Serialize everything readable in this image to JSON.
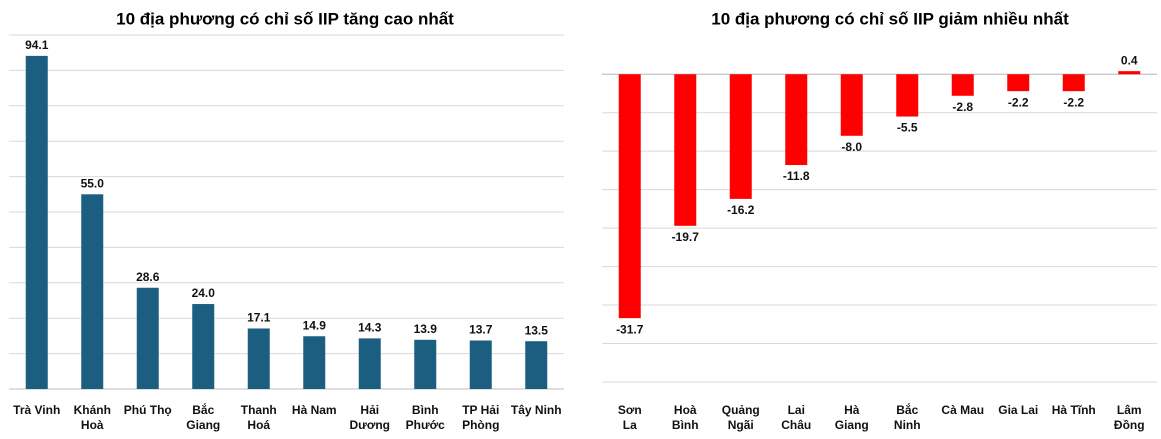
{
  "chart_data": [
    {
      "type": "bar",
      "title": "10 địa phương có chỉ số IIP tăng cao nhất",
      "categories": [
        "Trà Vinh",
        "Khánh\nHoà",
        "Phú Thọ",
        "Bắc\nGiang",
        "Thanh\nHoá",
        "Hà Nam",
        "Hải\nDương",
        "Bình\nPhước",
        "TP Hải\nPhòng",
        "Tây Ninh"
      ],
      "values": [
        94.1,
        55.0,
        28.6,
        24.0,
        17.1,
        14.9,
        14.3,
        13.9,
        13.7,
        13.5
      ],
      "value_labels": [
        "94.1",
        "55.0",
        "28.6",
        "24.0",
        "17.1",
        "14.9",
        "14.3",
        "13.9",
        "13.7",
        "13.5"
      ],
      "color": "#1b5e80",
      "ylim": [
        0,
        100
      ],
      "yticks": [
        0,
        10,
        20,
        30,
        40,
        50,
        60,
        70,
        80,
        90,
        100
      ],
      "grid": true,
      "tick_labels": false
    },
    {
      "type": "bar",
      "title": "10 địa phương có chỉ số IIP giảm nhiều nhất",
      "categories": [
        "Sơn\nLa",
        "Hoà\nBình",
        "Quảng\nNgãi",
        "Lai\nChâu",
        "Hà\nGiang",
        "Bắc\nNinh",
        "Cà Mau",
        "Gia Lai",
        "Hà Tĩnh",
        "Lâm\nĐồng"
      ],
      "values": [
        -31.7,
        -19.7,
        -16.2,
        -11.8,
        -8.0,
        -5.5,
        -2.8,
        -2.2,
        -2.2,
        0.4
      ],
      "value_labels": [
        "-31.7",
        "-19.7",
        "-16.2",
        "-11.8",
        "-8.0",
        "-5.5",
        "-2.8",
        "-2.2",
        "-2.2",
        "0.4"
      ],
      "color": "#ff0000",
      "ylim": [
        -40,
        2.5
      ],
      "yticks": [
        -40,
        -35,
        -30,
        -25,
        -20,
        -15,
        -10,
        -5,
        0
      ],
      "grid": true,
      "tick_labels": false
    }
  ]
}
